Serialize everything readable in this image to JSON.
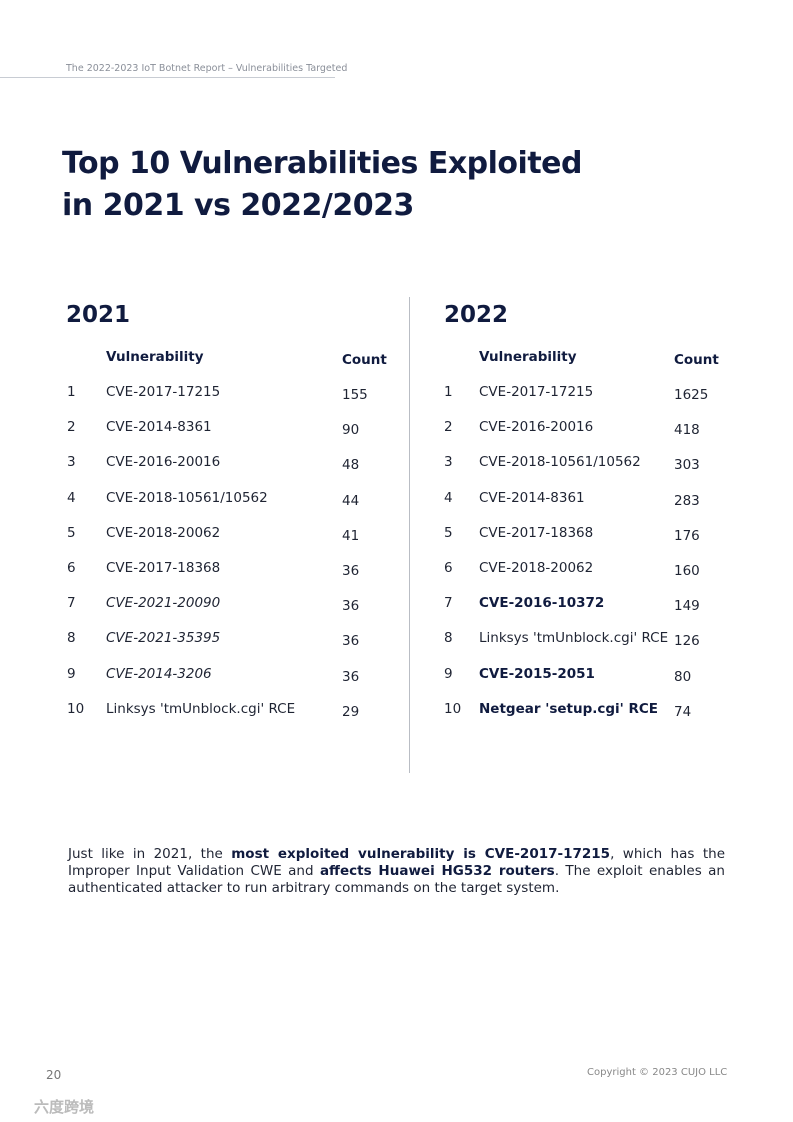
{
  "header": {
    "running_title": "The 2022-2023 IoT Botnet Report – Vulnerabilities Targeted"
  },
  "title": [
    "Top 10 Vulnerabilities Exploited",
    "in 2021 vs 2022/2023"
  ],
  "tables": [
    {
      "year": "2021",
      "columns": [
        "Vulnerability",
        "Count"
      ],
      "rows": [
        {
          "rank": 1,
          "vulnerability": "CVE-2017-17215",
          "count": 155,
          "style": "normal"
        },
        {
          "rank": 2,
          "vulnerability": "CVE-2014-8361",
          "count": 90,
          "style": "normal"
        },
        {
          "rank": 3,
          "vulnerability": "CVE-2016-20016",
          "count": 48,
          "style": "normal"
        },
        {
          "rank": 4,
          "vulnerability": "CVE-2018-10561/10562",
          "count": 44,
          "style": "normal"
        },
        {
          "rank": 5,
          "vulnerability": "CVE-2018-20062",
          "count": 41,
          "style": "normal"
        },
        {
          "rank": 6,
          "vulnerability": "CVE-2017-18368",
          "count": 36,
          "style": "normal"
        },
        {
          "rank": 7,
          "vulnerability": "CVE-2021-20090",
          "count": 36,
          "style": "italic"
        },
        {
          "rank": 8,
          "vulnerability": "CVE-2021-35395",
          "count": 36,
          "style": "italic"
        },
        {
          "rank": 9,
          "vulnerability": "CVE-2014-3206",
          "count": 36,
          "style": "italic"
        },
        {
          "rank": 10,
          "vulnerability": "Linksys 'tmUnblock.cgi' RCE",
          "count": 29,
          "style": "normal"
        }
      ]
    },
    {
      "year": "2022",
      "columns": [
        "Vulnerability",
        "Count"
      ],
      "rows": [
        {
          "rank": 1,
          "vulnerability": "CVE-2017-17215",
          "count": 1625,
          "style": "normal"
        },
        {
          "rank": 2,
          "vulnerability": "CVE-2016-20016",
          "count": 418,
          "style": "normal"
        },
        {
          "rank": 3,
          "vulnerability": "CVE-2018-10561/10562",
          "count": 303,
          "style": "normal"
        },
        {
          "rank": 4,
          "vulnerability": "CVE-2014-8361",
          "count": 283,
          "style": "normal"
        },
        {
          "rank": 5,
          "vulnerability": "CVE-2017-18368",
          "count": 176,
          "style": "normal"
        },
        {
          "rank": 6,
          "vulnerability": "CVE-2018-20062",
          "count": 160,
          "style": "normal"
        },
        {
          "rank": 7,
          "vulnerability": "CVE-2016-10372",
          "count": 149,
          "style": "bold"
        },
        {
          "rank": 8,
          "vulnerability": "Linksys 'tmUnblock.cgi' RCE",
          "count": 126,
          "style": "normal"
        },
        {
          "rank": 9,
          "vulnerability": "CVE-2015-2051",
          "count": 80,
          "style": "bold"
        },
        {
          "rank": 10,
          "vulnerability": "Netgear 'setup.cgi' RCE",
          "count": 74,
          "style": "bold"
        }
      ]
    }
  ],
  "paragraph": [
    {
      "text": "Just like in 2021, the ",
      "bold": false
    },
    {
      "text": "most exploited vulnerability is CVE-2017-17215",
      "bold": true
    },
    {
      "text": ", which has the Improper Input Validation CWE and ",
      "bold": false
    },
    {
      "text": "affects Huawei HG532 routers",
      "bold": true
    },
    {
      "text": ". The exploit enables an authenticated attacker to run arbitrary commands on the target system.",
      "bold": false
    }
  ],
  "footer": {
    "page_number": 20,
    "copyright": "Copyright © 2023 CUJO LLC"
  },
  "watermark": "六度跨境"
}
